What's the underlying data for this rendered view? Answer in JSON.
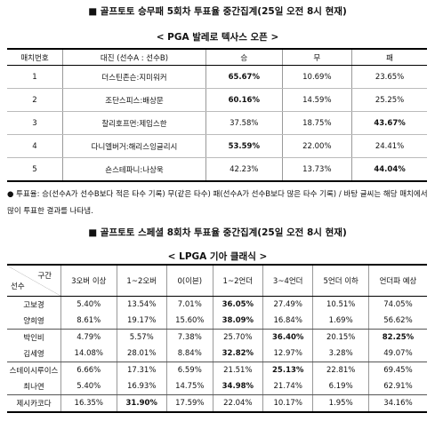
{
  "title1": "■ 골프토토 승무패 5회차 투표율 중간집계(25일 오전 8시 현재)",
  "subtitle1": "< PGA 발레로 텍사스 오픈 >",
  "table1": {
    "header": [
      "매치번호",
      "대진 (선수A : 선수B)",
      "승",
      "무",
      "패"
    ],
    "rows": [
      [
        "1",
        "더스틴존슨:지미워커",
        "65.67%",
        "10.69%",
        "23.65%"
      ],
      [
        "2",
        "조단스피스:배상문",
        "60.16%",
        "14.59%",
        "25.25%"
      ],
      [
        "3",
        "찰리호프먼:제임스한",
        "37.58%",
        "18.75%",
        "43.67%"
      ],
      [
        "4",
        "다니엘버거:해리스잉글리시",
        "53.59%",
        "22.00%",
        "24.41%"
      ],
      [
        "5",
        "숀스테파니:나상욱",
        "42.23%",
        "13.73%",
        "44.04%"
      ]
    ]
  },
  "note": "● 투표율: 승(선수A가 선수B보다 적은 타수 기록) 무(같은 타수) 패(선수A가 선수B보다 많은 타수 기록) / 바탕 글씨는 해당 매치에서 많이 투표한 결과를 나타냄.",
  "title2": "■ 골프토토 스페셜 8회차 투표율 중간집계(25일 오전 8시 현재)",
  "subtitle2": "< LPGA 기아 클래식 >",
  "table2": {
    "corner_top": "구간",
    "corner_bottom": "선수",
    "header": [
      "3오버 이상",
      "1~2오버",
      "0(이븐)",
      "1~2언더",
      "3~4언더",
      "5언더 이하",
      "언더파 예상"
    ],
    "rows": [
      [
        "고보경",
        "5.40%",
        "13.54%",
        "7.01%",
        "36.05%",
        "27.49%",
        "10.51%",
        "74.05%"
      ],
      [
        "양희영",
        "8.61%",
        "19.17%",
        "15.60%",
        "38.09%",
        "16.84%",
        "1.69%",
        "56.62%"
      ],
      [
        "박인비",
        "4.79%",
        "5.57%",
        "7.38%",
        "25.70%",
        "36.40%",
        "20.15%",
        "82.25%"
      ],
      [
        "김세영",
        "14.08%",
        "28.01%",
        "8.84%",
        "32.82%",
        "12.97%",
        "3.28%",
        "49.07%"
      ],
      [
        "스테이시루이스",
        "6.66%",
        "17.31%",
        "6.59%",
        "21.51%",
        "25.13%",
        "22.81%",
        "69.45%"
      ],
      [
        "최나연",
        "5.40%",
        "16.93%",
        "14.75%",
        "34.98%",
        "21.74%",
        "6.19%",
        "62.91%"
      ],
      [
        "제시카코다",
        "16.35%",
        "31.90%",
        "17.59%",
        "22.04%",
        "10.17%",
        "1.95%",
        "34.16%"
      ]
    ]
  }
}
